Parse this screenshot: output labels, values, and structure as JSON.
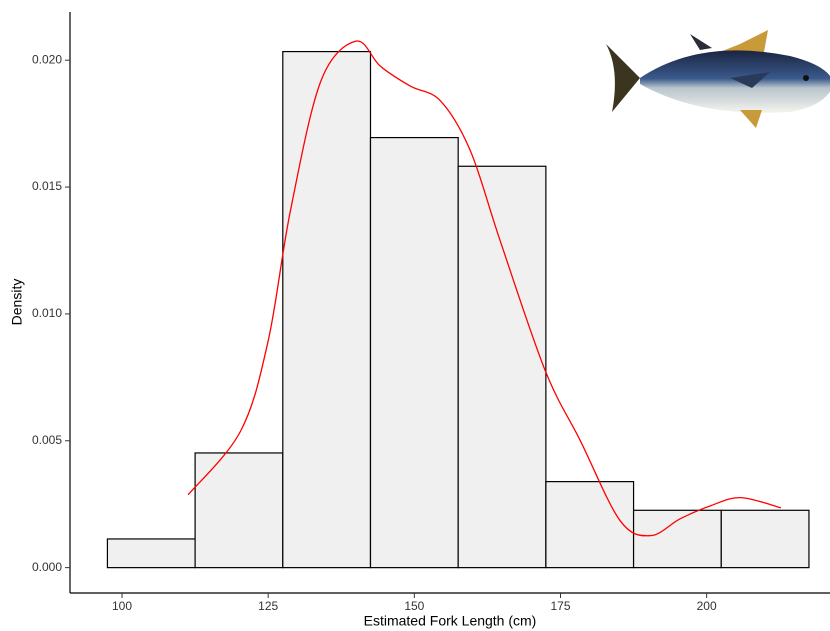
{
  "chart_data": {
    "type": "histogram",
    "x_label": "Estimated Fork Length (cm)",
    "y_label": "Density",
    "bins": [
      97.5,
      112.5,
      127.5,
      142.5,
      157.5,
      172.5,
      187.5,
      202.5,
      217.5
    ],
    "values": [
      0.00113,
      0.00452,
      0.02034,
      0.01695,
      0.01582,
      0.00339,
      0.00226,
      0.00226
    ],
    "color": "#f0f0f0",
    "edge_color": "#000000",
    "curve": {
      "color": "#ff0000",
      "x": [
        111.3,
        120.3,
        125,
        128.8,
        134,
        140,
        144.2,
        149.3,
        154.5,
        159.6,
        164.7,
        172.4,
        178.4,
        185.2,
        190.4,
        195.5,
        200.7,
        205.8,
        212.7
      ],
      "y": [
        0.00287,
        0.00539,
        0.00894,
        0.01406,
        0.01917,
        0.02075,
        0.01976,
        0.01898,
        0.01839,
        0.01642,
        0.01287,
        0.00776,
        0.005,
        0.00185,
        0.00126,
        0.00193,
        0.00244,
        0.00276,
        0.00236
      ]
    },
    "xlim": [
      91.1,
      221.1
    ],
    "ylim": [
      -0.001,
      0.0219
    ],
    "xticks": [
      100,
      125,
      150,
      175,
      200
    ],
    "yticks": [
      {
        "value": 0,
        "label": "0.000"
      },
      {
        "value": 0.005,
        "label": "0.005"
      },
      {
        "value": 0.01,
        "label": "0.010"
      },
      {
        "value": 0.015,
        "label": "0.015"
      },
      {
        "value": 0.02,
        "label": "0.020"
      }
    ],
    "grid": false
  }
}
